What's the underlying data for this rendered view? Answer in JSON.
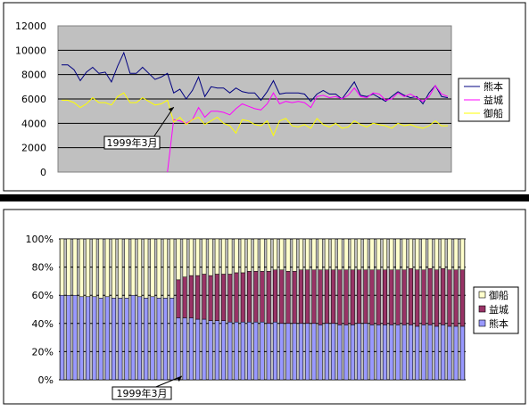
{
  "chart_data": [
    {
      "type": "line",
      "title": "",
      "xlabel": "",
      "ylabel": "",
      "ylim": [
        0,
        12000
      ],
      "yticks": [
        0,
        2000,
        4000,
        6000,
        8000,
        10000,
        12000
      ],
      "grid": true,
      "legend": "right",
      "annotation": {
        "text": "1999年3月",
        "index": 18
      },
      "series": [
        {
          "name": "熊本",
          "color": "#000080",
          "values": [
            8800,
            8800,
            8400,
            7500,
            8200,
            8600,
            8100,
            8200,
            7400,
            8700,
            9800,
            8100,
            8100,
            8600,
            8100,
            7600,
            7800,
            8100,
            6500,
            6800,
            6000,
            6700,
            7800,
            6200,
            7000,
            6900,
            6900,
            6500,
            6900,
            6600,
            6500,
            6500,
            5900,
            6600,
            7500,
            6400,
            6500,
            6500,
            6500,
            6400,
            5800,
            6400,
            6700,
            6400,
            6400,
            6000,
            6700,
            7400,
            6300,
            6200,
            6400,
            6100,
            5800,
            6200,
            6600,
            6300,
            6100,
            6200,
            5600,
            6500,
            7100,
            6200,
            6100
          ]
        },
        {
          "name": "益城",
          "color": "#ff00ff",
          "values": [
            null,
            null,
            null,
            null,
            null,
            null,
            null,
            null,
            null,
            null,
            null,
            null,
            null,
            null,
            null,
            null,
            null,
            0,
            4300,
            4200,
            4000,
            4300,
            5300,
            4500,
            5000,
            5000,
            4900,
            4700,
            5200,
            5600,
            5400,
            5200,
            5100,
            5600,
            6500,
            5600,
            5800,
            5700,
            5800,
            5700,
            5300,
            6200,
            6300,
            6100,
            6200,
            6000,
            6300,
            6900,
            6200,
            6100,
            6500,
            6400,
            5900,
            6000,
            6500,
            6200,
            6400,
            6100,
            5800,
            6200,
            7100,
            6400,
            6200
          ]
        },
        {
          "name": "御船",
          "color": "#ffff00",
          "values": [
            5900,
            5900,
            5700,
            5300,
            5600,
            6100,
            5700,
            5700,
            5500,
            6200,
            6500,
            5700,
            5700,
            6100,
            5800,
            5500,
            5600,
            5900,
            4100,
            4500,
            3900,
            4300,
            4500,
            3900,
            4200,
            4500,
            4000,
            3800,
            3200,
            4300,
            4200,
            3900,
            3800,
            4200,
            3000,
            4200,
            4400,
            3800,
            3700,
            3900,
            3600,
            4400,
            3900,
            3700,
            4000,
            3600,
            3700,
            4200,
            3900,
            3700,
            4000,
            3900,
            3800,
            3600,
            4000,
            3800,
            3900,
            3700,
            3600,
            3800,
            4200,
            3800,
            3800
          ]
        }
      ]
    },
    {
      "type": "bar",
      "stacked": "percent",
      "title": "",
      "xlabel": "",
      "ylabel": "",
      "ylim": [
        0,
        100
      ],
      "ytick_labels": [
        "0%",
        "20%",
        "40%",
        "60%",
        "80%",
        "100%"
      ],
      "yticks": [
        0,
        20,
        40,
        60,
        80,
        100
      ],
      "grid": true,
      "legend": "right",
      "annotation": {
        "text": "1999年3月",
        "index": 18
      },
      "series": [
        {
          "name": "熊本",
          "color": "#9999ff",
          "values": [
            60,
            60,
            60,
            59,
            59,
            59,
            58,
            59,
            58,
            58,
            58,
            60,
            59,
            58,
            59,
            58,
            58,
            58,
            44,
            44,
            44,
            43,
            43,
            42,
            42,
            42,
            41,
            41,
            41,
            41,
            41,
            41,
            40,
            41,
            40,
            40,
            40,
            40,
            40,
            40,
            39,
            40,
            40,
            39,
            39,
            39,
            40,
            40,
            39,
            39,
            39,
            39,
            39,
            39,
            39,
            38,
            39,
            39,
            38,
            39,
            38,
            38,
            38
          ]
        },
        {
          "name": "益城",
          "color": "#993366",
          "values": [
            0,
            0,
            0,
            0,
            0,
            0,
            0,
            0,
            0,
            0,
            0,
            0,
            0,
            0,
            0,
            0,
            0,
            0,
            27,
            29,
            30,
            31,
            32,
            32,
            33,
            33,
            34,
            35,
            35,
            36,
            36,
            36,
            37,
            37,
            38,
            37,
            37,
            38,
            38,
            38,
            39,
            38,
            38,
            39,
            39,
            39,
            38,
            38,
            39,
            39,
            39,
            39,
            39,
            39,
            40,
            40,
            39,
            40,
            40,
            40,
            40,
            40,
            40
          ]
        },
        {
          "name": "御船",
          "color": "#ffffcc",
          "values": [
            40,
            40,
            40,
            41,
            41,
            41,
            42,
            41,
            42,
            42,
            42,
            40,
            41,
            42,
            41,
            42,
            42,
            42,
            29,
            27,
            26,
            26,
            25,
            26,
            25,
            25,
            25,
            24,
            24,
            23,
            23,
            23,
            23,
            22,
            22,
            23,
            23,
            22,
            22,
            22,
            22,
            22,
            22,
            22,
            22,
            22,
            22,
            22,
            22,
            22,
            22,
            22,
            22,
            22,
            21,
            22,
            22,
            21,
            22,
            21,
            22,
            22,
            22
          ]
        }
      ]
    }
  ]
}
